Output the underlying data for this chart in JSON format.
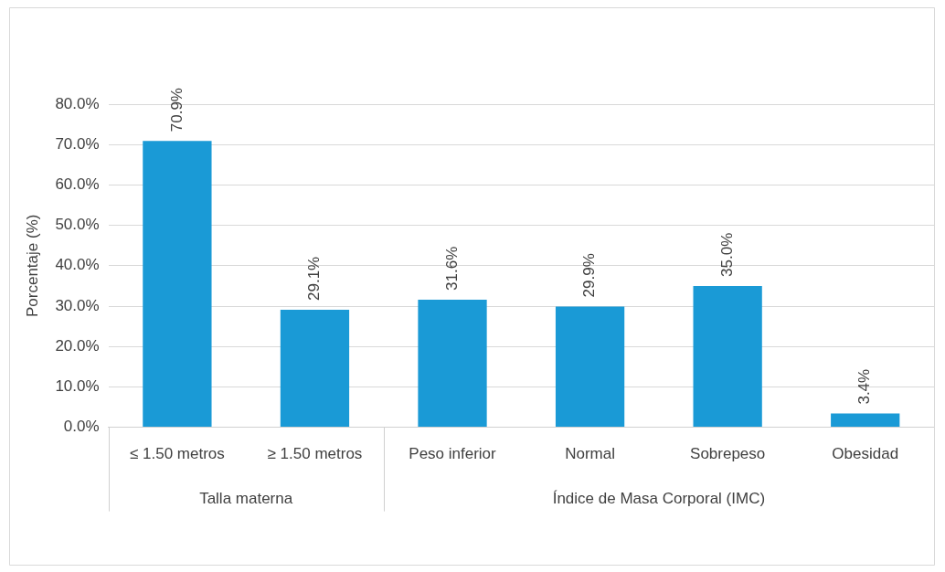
{
  "chart_data": {
    "type": "bar",
    "ylabel": "Porcentaje (%)",
    "categories": [
      "≤ 1.50 metros",
      "≥ 1.50 metros",
      "Peso inferior",
      "Normal",
      "Sobrepeso",
      "Obesidad"
    ],
    "values": [
      70.9,
      29.1,
      31.6,
      29.9,
      35.0,
      3.4
    ],
    "value_labels": [
      "70.9%",
      "29.1%",
      "31.6%",
      "29.9%",
      "35.0%",
      "3.4%"
    ],
    "color": "#1a9ad6",
    "ylim": [
      0,
      80
    ],
    "yticks": [
      {
        "value": 0,
        "label": "0.0%"
      },
      {
        "value": 10,
        "label": "10.0%"
      },
      {
        "value": 20,
        "label": "20.0%"
      },
      {
        "value": 30,
        "label": "30.0%"
      },
      {
        "value": 40,
        "label": "40.0%"
      },
      {
        "value": 50,
        "label": "50.0%"
      },
      {
        "value": 60,
        "label": "60.0%"
      },
      {
        "value": 70,
        "label": "70.0%"
      },
      {
        "value": 80,
        "label": "80.0%"
      }
    ],
    "grid": "y",
    "legend": false,
    "annotations": [
      "Talla materna",
      "Índice de Masa Corporal (IMC)"
    ]
  }
}
